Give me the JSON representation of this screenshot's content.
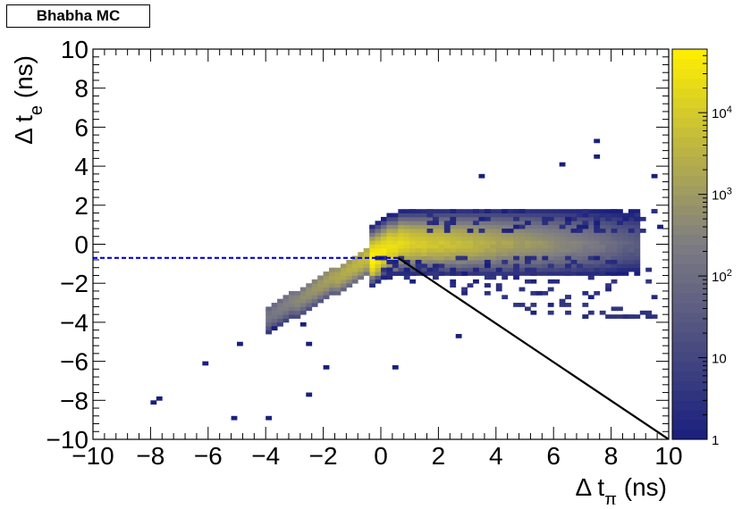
{
  "chart_data": {
    "type": "heatmap",
    "title": "Bhabha MC",
    "xlabel": {
      "prefix": "Δ t",
      "sub": "π",
      "suffix": " (ns)"
    },
    "ylabel": {
      "prefix": "Δ t",
      "sub": "e",
      "suffix": " (ns)"
    },
    "xlim": [
      -10,
      10
    ],
    "ylim": [
      -10,
      10
    ],
    "xticks": [
      -10,
      -8,
      -6,
      -4,
      -2,
      0,
      2,
      4,
      6,
      8,
      10
    ],
    "yticks": [
      -10,
      -8,
      -6,
      -4,
      -2,
      0,
      2,
      4,
      6,
      8,
      10
    ],
    "xtick_labels": [
      "−10",
      "−8",
      "−6",
      "−4",
      "−2",
      "0",
      "2",
      "4",
      "6",
      "8",
      "10"
    ],
    "ytick_labels": [
      "−10",
      "−8",
      "−6",
      "−4",
      "−2",
      "0",
      "2",
      "4",
      "6",
      "8",
      "10"
    ],
    "colorbar": {
      "scale": "log",
      "min": 1,
      "max": 60000,
      "labels": [
        {
          "value": 1,
          "base": "1",
          "exp": ""
        },
        {
          "value": 10,
          "base": "10",
          "exp": ""
        },
        {
          "value": 100,
          "base": "10",
          "exp": "2"
        },
        {
          "value": 1000,
          "base": "10",
          "exp": "3"
        },
        {
          "value": 10000,
          "base": "10",
          "exp": "4"
        }
      ]
    },
    "colors": {
      "low": "#1a1f7e",
      "mid": "#7d7c83",
      "high": "#fff000",
      "cut_dashed": "#0000ee",
      "cut_solid": "#000000"
    },
    "cut_lines": [
      {
        "style": "dashed",
        "x": [
          -10,
          0.6
        ],
        "y": [
          -0.7,
          -0.7
        ]
      },
      {
        "style": "solid",
        "x": [
          0.6,
          10
        ],
        "y": [
          -0.7,
          -10
        ]
      }
    ],
    "bin_width": 0.2,
    "bin_height": 0.2,
    "dense_band": [
      {
        "x": -0.4,
        "y": -0.6,
        "count": 60000
      },
      {
        "x": -0.2,
        "y": -0.4,
        "count": 40000
      },
      {
        "x": 0.0,
        "y": -0.2,
        "count": 30000
      },
      {
        "x": 0.4,
        "y": 0.0,
        "count": 20000
      },
      {
        "x": 1.0,
        "y": 0.1,
        "count": 10000
      },
      {
        "x": 2.0,
        "y": 0.1,
        "count": 6000
      },
      {
        "x": 3.0,
        "y": 0.1,
        "count": 3000
      },
      {
        "x": 4.0,
        "y": 0.1,
        "count": 1500
      },
      {
        "x": 5.0,
        "y": 0.1,
        "count": 800
      },
      {
        "x": 6.0,
        "y": 0.1,
        "count": 400
      },
      {
        "x": 7.0,
        "y": 0.1,
        "count": 200
      },
      {
        "x": 8.0,
        "y": 0.1,
        "count": 80
      },
      {
        "x": 9.0,
        "y": 0.1,
        "count": 30
      }
    ],
    "sparse_points": [
      {
        "x": -8.0,
        "y": -8.2,
        "count": 1
      },
      {
        "x": -7.8,
        "y": -8.0,
        "count": 1
      },
      {
        "x": -6.2,
        "y": -6.2,
        "count": 1
      },
      {
        "x": -5.2,
        "y": -9.0,
        "count": 1
      },
      {
        "x": -5.0,
        "y": -5.2,
        "count": 1
      },
      {
        "x": -4.0,
        "y": -9.0,
        "count": 1
      },
      {
        "x": -3.8,
        "y": -4.4,
        "count": 1
      },
      {
        "x": -2.8,
        "y": -4.2,
        "count": 1
      },
      {
        "x": -2.6,
        "y": -5.2,
        "count": 1
      },
      {
        "x": -2.6,
        "y": -7.8,
        "count": 1
      },
      {
        "x": -2.0,
        "y": -6.4,
        "count": 1
      },
      {
        "x": 0.4,
        "y": -6.4,
        "count": 1
      },
      {
        "x": 2.6,
        "y": -4.8,
        "count": 1
      },
      {
        "x": 3.4,
        "y": 3.4,
        "count": 1
      },
      {
        "x": 7.6,
        "y": 4.4,
        "count": 1
      },
      {
        "x": 7.4,
        "y": 5.2,
        "count": 1
      },
      {
        "x": 6.2,
        "y": 4.0,
        "count": 1
      },
      {
        "x": 9.4,
        "y": 3.4,
        "count": 1
      }
    ]
  }
}
